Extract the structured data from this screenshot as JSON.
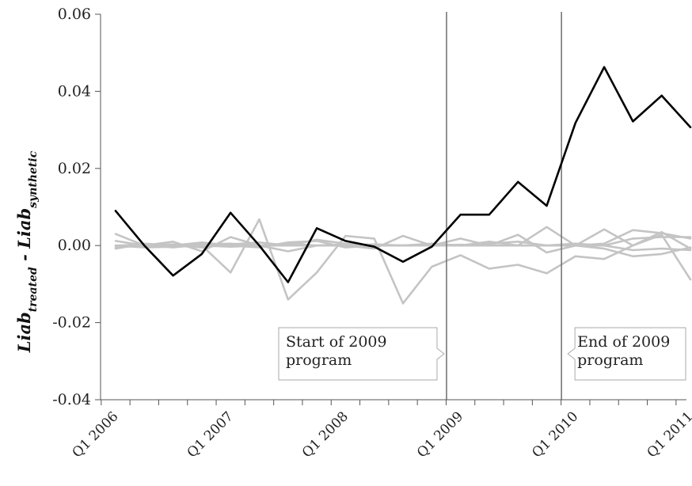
{
  "chart_data": {
    "type": "line",
    "ylabel": {
      "prefix_main": "Liab",
      "prefix_sub": "treated",
      "separator": " - ",
      "suffix_main": "Liab",
      "suffix_sub": "synthetic"
    },
    "ylim": [
      -0.04,
      0.06
    ],
    "yticks": [
      0.06,
      0.04,
      0.02,
      0.0,
      -0.02,
      -0.04
    ],
    "ytick_labels": [
      "0.06",
      "0.04",
      "0.02",
      "0.00",
      "-0.02",
      "-0.04"
    ],
    "x_quarters": [
      "Q1 2006",
      "Q2 2006",
      "Q3 2006",
      "Q4 2006",
      "Q1 2007",
      "Q2 2007",
      "Q3 2007",
      "Q4 2007",
      "Q1 2008",
      "Q2 2008",
      "Q3 2008",
      "Q4 2008",
      "Q1 2009",
      "Q2 2009",
      "Q3 2009",
      "Q4 2009",
      "Q1 2010",
      "Q2 2010",
      "Q3 2010",
      "Q4 2010",
      "Q1 2011"
    ],
    "xtick_labels": [
      "Q1 2006",
      "Q1 2007",
      "Q1 2008",
      "Q1 2009",
      "Q1 2010",
      "Q1 2011"
    ],
    "vertical_lines": [
      {
        "name": "start",
        "after_quarter": "Q4 2008"
      },
      {
        "name": "end",
        "after_quarter": "Q4 2009"
      }
    ],
    "annotations": [
      {
        "name": "start-annotation",
        "lines": [
          "Start of 2009",
          "program"
        ]
      },
      {
        "name": "end-annotation",
        "lines": [
          "End of 2009",
          "program"
        ]
      }
    ],
    "series": [
      {
        "role": "treated",
        "color": "#000000",
        "values": [
          0.009,
          0.0,
          -0.0078,
          -0.0022,
          0.0085,
          0.0,
          -0.0095,
          0.0045,
          0.0012,
          -0.0003,
          -0.0042,
          -0.0003,
          0.008,
          0.008,
          0.0165,
          0.0103,
          0.0318,
          0.0463,
          0.0322,
          0.0389,
          0.0307
        ]
      },
      {
        "role": "placebo",
        "color": "#c4c4c4",
        "values": [
          0.0,
          -0.0005,
          -0.0003,
          0.0,
          -0.007,
          0.0068,
          -0.014,
          -0.007,
          0.0025,
          0.0018,
          -0.015,
          -0.0055,
          -0.0025,
          -0.006,
          -0.005,
          -0.0072,
          -0.0028,
          -0.0035,
          0.0,
          0.0028,
          -0.0088
        ]
      },
      {
        "role": "placebo",
        "color": "#c4c4c4",
        "values": [
          0.003,
          0.0,
          0.001,
          -0.0015,
          0.0022,
          0.0,
          -0.0015,
          0.0,
          0.0,
          -0.0008,
          0.0025,
          0.0,
          0.0018,
          0.0,
          0.0028,
          -0.0018,
          0.0,
          0.0042,
          0.0,
          0.0035,
          -0.0008
        ]
      },
      {
        "role": "placebo",
        "color": "#c4c4c4",
        "values": [
          -0.0008,
          0.0005,
          0.0,
          0.0008,
          0.0,
          -0.0005,
          0.0008,
          0.0012,
          -0.0005,
          0.0,
          0.0,
          0.0005,
          0.0,
          0.001,
          0.0,
          0.0048,
          0.0,
          -0.0008,
          -0.0028,
          -0.0022,
          -0.0005
        ]
      },
      {
        "role": "placebo",
        "color": "#c4c4c4",
        "values": [
          0.0,
          0.0002,
          -0.0005,
          0.0003,
          0.0005,
          0.0,
          0.0,
          0.0,
          0.0003,
          0.0,
          0.0,
          0.0,
          0.0002,
          0.0,
          0.0,
          0.0,
          0.0,
          0.0005,
          0.004,
          0.0032,
          0.0018
        ]
      },
      {
        "role": "placebo",
        "color": "#c4c4c4",
        "values": [
          0.0012,
          0.0,
          0.0,
          -0.0005,
          0.0003,
          0.0008,
          0.0,
          0.0015,
          0.0005,
          0.0,
          0.0,
          0.0003,
          0.0,
          0.0005,
          0.001,
          0.0,
          0.0005,
          0.0,
          0.0018,
          0.0022,
          0.0022
        ]
      },
      {
        "role": "placebo",
        "color": "#c4c4c4",
        "values": [
          -0.0005,
          0.0,
          0.0003,
          0.0,
          -0.0003,
          0.0,
          0.0005,
          0.0,
          0.0,
          0.0003,
          0.0,
          0.0,
          0.0,
          0.0,
          0.0,
          0.0,
          0.0,
          0.0,
          -0.0012,
          -0.0008,
          -0.0012
        ]
      }
    ]
  }
}
